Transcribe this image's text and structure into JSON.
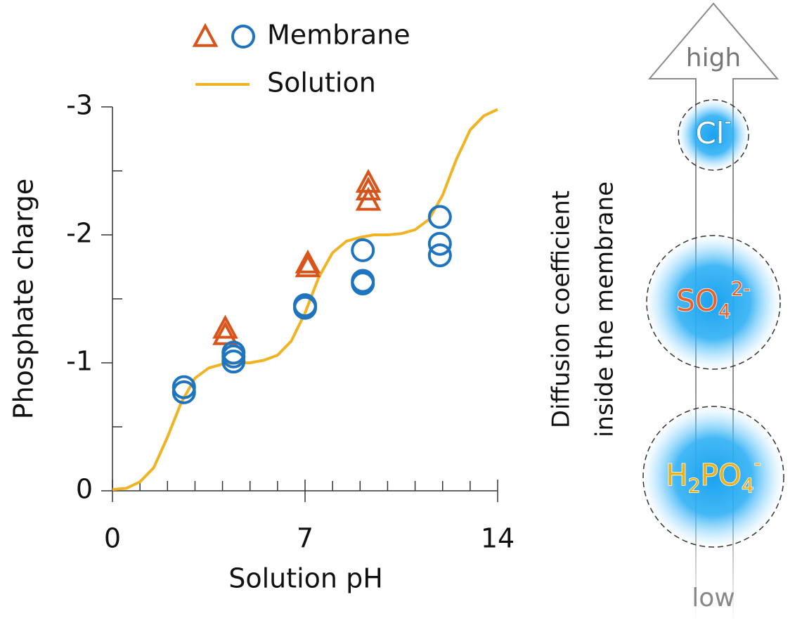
{
  "chart_data": {
    "type": "scatter-line",
    "x_label": "Solution pH",
    "y_label": "Phosphate charge",
    "xlim": [
      0,
      14
    ],
    "xticks": [
      0,
      7,
      14
    ],
    "xminor_ticks": [
      1,
      2,
      3,
      4,
      5,
      6,
      8,
      9,
      10,
      11,
      12,
      13
    ],
    "ylim": [
      0,
      -3
    ],
    "yticks": [
      0,
      -1,
      -2,
      -3
    ],
    "yminor_ticks": [
      -0.5,
      -1.5,
      -2.5
    ],
    "series": [
      {
        "name": "Membrane",
        "markers": [
          {
            "shape": "triangle",
            "color": "#d9541b",
            "x": [
              4.1,
              4.1,
              7.1,
              7.1,
              9.3,
              9.3,
              9.3
            ],
            "values": [
              -1.22,
              -1.27,
              -1.75,
              -1.78,
              -2.27,
              -2.35,
              -2.41
            ]
          },
          {
            "shape": "circle",
            "color": "#1f74c0",
            "x": [
              2.6,
              2.6,
              4.4,
              4.4,
              4.4,
              7.0,
              7.0,
              9.1,
              9.1,
              9.1,
              11.9,
              11.9,
              11.9
            ],
            "values": [
              -0.77,
              -0.81,
              -1.01,
              -1.05,
              -1.08,
              -1.43,
              -1.45,
              -1.62,
              -1.64,
              -1.88,
              -1.84,
              -1.93,
              -2.14
            ]
          }
        ]
      },
      {
        "name": "Solution",
        "color": "#f0b323",
        "x": [
          0,
          0.5,
          1,
          1.5,
          2,
          2.5,
          3,
          3.5,
          4,
          4.5,
          5,
          5.5,
          6,
          6.5,
          7,
          7.5,
          8,
          8.5,
          9,
          9.5,
          10,
          10.5,
          11,
          11.5,
          12,
          12.5,
          13,
          13.5,
          14
        ],
        "values": [
          -0.01,
          -0.02,
          -0.07,
          -0.18,
          -0.42,
          -0.69,
          -0.88,
          -0.96,
          -0.99,
          -1.0,
          -1.0,
          -1.02,
          -1.06,
          -1.17,
          -1.39,
          -1.67,
          -1.86,
          -1.95,
          -1.98,
          -2.0,
          -2.0,
          -2.01,
          -2.04,
          -2.12,
          -2.31,
          -2.59,
          -2.82,
          -2.93,
          -2.98
        ]
      }
    ]
  },
  "diagram": {
    "axis_title": [
      "Diffusion coefficient",
      "inside the membrane"
    ],
    "arrow_top": "high",
    "arrow_bottom": "low",
    "ions": [
      {
        "color": "#ffffff",
        "segments": [
          {
            "text": "Cl"
          },
          {
            "text": "-",
            "sup": true
          }
        ]
      },
      {
        "color": "#e8622a",
        "segments": [
          {
            "text": "SO"
          },
          {
            "text": "4",
            "sub": true
          },
          {
            "text": "2-",
            "sup": true
          }
        ]
      },
      {
        "color": "#e9b21e",
        "segments": [
          {
            "text": "H"
          },
          {
            "text": "2",
            "sub": true
          },
          {
            "text": "PO"
          },
          {
            "text": "4",
            "sub": true
          },
          {
            "text": "-",
            "sup": true
          }
        ]
      }
    ]
  }
}
